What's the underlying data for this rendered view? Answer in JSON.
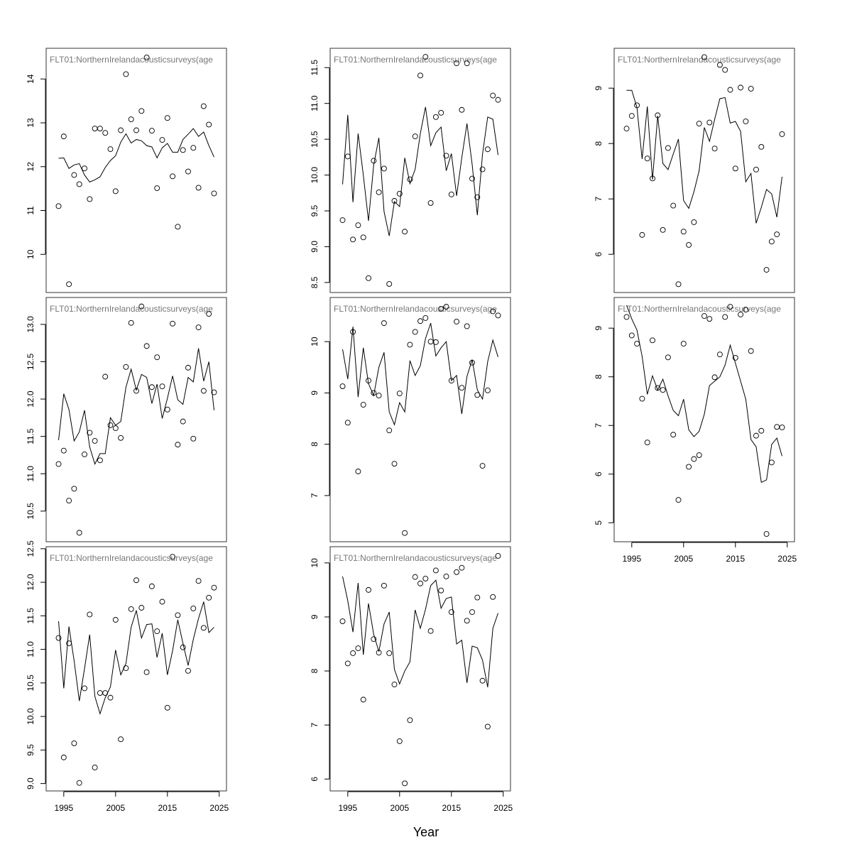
{
  "xlabel": "Year",
  "chart_data": [
    {
      "type": "scatter_line",
      "title": "FLT01:NorthernIrelandacousticsurveys(age",
      "x": [
        1994,
        1995,
        1996,
        1997,
        1998,
        1999,
        2000,
        2001,
        2002,
        2003,
        2004,
        2005,
        2006,
        2007,
        2008,
        2009,
        2010,
        2011,
        2012,
        2013,
        2014,
        2015,
        2016,
        2017,
        2018,
        2019,
        2020,
        2021,
        2022,
        2023,
        2024
      ],
      "series": [
        {
          "style": "points",
          "color": "#000000",
          "values": [
            11.1,
            12.69,
            9.32,
            11.81,
            11.6,
            11.96,
            11.26,
            12.87,
            12.87,
            12.77,
            12.4,
            11.44,
            12.83,
            14.11,
            13.08,
            12.83,
            13.27,
            14.49,
            12.82,
            11.51,
            12.61,
            13.11,
            11.78,
            10.63,
            12.38,
            11.89,
            12.43,
            11.52,
            13.38,
            12.96,
            11.39
          ]
        },
        {
          "style": "line",
          "color": "#000000",
          "values": [
            12.19,
            12.2,
            11.96,
            12.04,
            12.07,
            11.81,
            11.65,
            11.7,
            11.77,
            11.98,
            12.14,
            12.25,
            12.56,
            12.75,
            12.54,
            12.62,
            12.59,
            12.48,
            12.45,
            12.2,
            12.43,
            12.53,
            12.33,
            12.33,
            12.62,
            12.74,
            12.87,
            12.69,
            12.79,
            12.48,
            12.22
          ]
        }
      ],
      "xlim": [
        1991.6,
        2026.4
      ],
      "ylim": [
        9.13,
        14.7
      ],
      "yticks": [
        10,
        11,
        12,
        13,
        14
      ]
    },
    {
      "type": "scatter_line",
      "title": "FLT01:NorthernIrelandacousticsurveys(age",
      "x": [
        1994,
        1995,
        1996,
        1997,
        1998,
        1999,
        2000,
        2001,
        2002,
        2003,
        2004,
        2005,
        2006,
        2007,
        2008,
        2009,
        2010,
        2011,
        2012,
        2013,
        2014,
        2015,
        2016,
        2017,
        2018,
        2019,
        2020,
        2021,
        2022,
        2023,
        2024
      ],
      "series": [
        {
          "style": "points",
          "color": "#000000",
          "values": [
            11.13,
            11.31,
            10.64,
            10.8,
            10.21,
            11.26,
            11.55,
            11.44,
            11.18,
            12.3,
            11.65,
            11.61,
            11.48,
            12.43,
            13.02,
            12.11,
            13.24,
            12.71,
            12.16,
            12.56,
            12.17,
            11.86,
            13.01,
            11.39,
            11.7,
            12.42,
            11.47,
            12.96,
            12.11,
            13.14,
            12.09
          ]
        },
        {
          "style": "line",
          "color": "#000000",
          "values": [
            11.45,
            12.07,
            11.86,
            11.44,
            11.56,
            11.85,
            11.36,
            11.13,
            11.27,
            11.27,
            11.75,
            11.65,
            11.7,
            12.16,
            12.4,
            12.12,
            12.33,
            12.29,
            11.94,
            12.2,
            11.74,
            12.01,
            12.31,
            11.99,
            11.93,
            12.29,
            12.23,
            12.68,
            12.24,
            12.5,
            11.85
          ]
        }
      ],
      "xlim": [
        1991.6,
        2026.4
      ],
      "ylim": [
        10.09,
        13.36
      ],
      "yticks": [
        10.5,
        {
          "value": 11,
          "label": "11.0"
        },
        11.5,
        {
          "value": 12,
          "label": "12.0"
        },
        12.5,
        {
          "value": 13,
          "label": "13.0"
        }
      ]
    },
    {
      "type": "scatter_line",
      "title": "FLT01:NorthernIrelandacousticsurveys(age",
      "x": [
        1994,
        1995,
        1996,
        1997,
        1998,
        1999,
        2000,
        2001,
        2002,
        2003,
        2004,
        2005,
        2006,
        2007,
        2008,
        2009,
        2010,
        2011,
        2012,
        2013,
        2014,
        2015,
        2016,
        2017,
        2018,
        2019,
        2020,
        2021,
        2022,
        2023,
        2024
      ],
      "series": [
        {
          "style": "points",
          "color": "#000000",
          "values": [
            11.17,
            9.39,
            11.09,
            9.6,
            9.01,
            10.42,
            11.52,
            9.24,
            10.35,
            10.35,
            10.28,
            11.44,
            9.66,
            10.72,
            11.6,
            12.03,
            11.62,
            10.66,
            11.94,
            11.27,
            11.71,
            10.13,
            12.38,
            11.51,
            11.03,
            10.68,
            11.61,
            12.02,
            11.32,
            11.77,
            11.92
          ]
        },
        {
          "style": "line",
          "color": "#000000",
          "values": [
            11.42,
            10.42,
            11.34,
            10.83,
            10.23,
            10.71,
            11.22,
            10.3,
            10.04,
            10.28,
            10.44,
            10.99,
            10.62,
            10.79,
            11.33,
            11.58,
            11.17,
            11.37,
            11.38,
            10.88,
            11.24,
            10.62,
            10.98,
            11.44,
            11.09,
            10.76,
            11.15,
            11.46,
            11.71,
            11.25,
            11.33
          ]
        }
      ],
      "xlim": [
        1991.6,
        2026.4
      ],
      "ylim": [
        8.89,
        12.53
      ],
      "yticks": [
        {
          "value": 9,
          "label": "9.0"
        },
        9.5,
        {
          "value": 10,
          "label": "10.0"
        },
        10.5,
        {
          "value": 11,
          "label": "11.0"
        },
        11.5,
        {
          "value": 12,
          "label": "12.0"
        },
        12.5
      ],
      "xticks": [
        1995,
        2005,
        2015,
        2025
      ]
    },
    {
      "type": "scatter_line",
      "title": "FLT01:NorthernIrelandacousticsurveys(age",
      "x": [
        1994,
        1995,
        1996,
        1997,
        1998,
        1999,
        2000,
        2001,
        2002,
        2003,
        2004,
        2005,
        2006,
        2007,
        2008,
        2009,
        2010,
        2011,
        2012,
        2013,
        2014,
        2015,
        2016,
        2017,
        2018,
        2019,
        2020,
        2021,
        2022,
        2023,
        2024
      ],
      "series": [
        {
          "style": "points",
          "color": "#000000",
          "values": [
            9.37,
            10.26,
            9.1,
            9.3,
            9.13,
            8.56,
            10.2,
            9.76,
            10.09,
            8.48,
            9.64,
            9.74,
            9.21,
            9.94,
            10.54,
            11.39,
            11.65,
            9.61,
            10.81,
            10.87,
            10.27,
            9.73,
            11.56,
            10.91,
            11.56,
            9.95,
            9.69,
            10.08,
            10.36,
            11.11,
            11.05
          ]
        },
        {
          "style": "line",
          "color": "#000000",
          "values": [
            9.87,
            10.84,
            9.62,
            10.58,
            10.0,
            9.36,
            10.14,
            10.52,
            9.49,
            9.15,
            9.63,
            9.56,
            10.24,
            9.88,
            10.08,
            10.58,
            10.95,
            10.41,
            10.59,
            10.67,
            10.06,
            10.3,
            9.71,
            10.24,
            10.72,
            10.15,
            9.44,
            10.29,
            10.81,
            10.78,
            10.28
          ]
        }
      ],
      "xlim": [
        1991.6,
        2026.4
      ],
      "ylim": [
        8.36,
        11.77
      ],
      "yticks": [
        8.5,
        {
          "value": 9,
          "label": "9.0"
        },
        9.5,
        {
          "value": 10,
          "label": "10.0"
        },
        10.5,
        {
          "value": 11,
          "label": "11.0"
        },
        11.5
      ]
    },
    {
      "type": "scatter_line",
      "title": "FLT01:NorthernIrelandacousticsurveys(age",
      "x": [
        1994,
        1995,
        1996,
        1997,
        1998,
        1999,
        2000,
        2001,
        2002,
        2003,
        2004,
        2005,
        2006,
        2007,
        2008,
        2009,
        2010,
        2011,
        2012,
        2013,
        2014,
        2015,
        2016,
        2017,
        2018,
        2019,
        2020,
        2021,
        2022,
        2023,
        2024
      ],
      "series": [
        {
          "style": "points",
          "color": "#000000",
          "values": [
            9.13,
            8.42,
            10.19,
            7.47,
            8.77,
            9.24,
            9.0,
            8.95,
            10.36,
            8.27,
            7.62,
            8.99,
            6.27,
            9.94,
            10.19,
            10.4,
            10.46,
            10.0,
            9.99,
            10.64,
            10.68,
            9.24,
            10.39,
            9.1,
            10.3,
            9.59,
            8.96,
            7.58,
            9.05,
            10.59,
            10.51
          ]
        },
        {
          "style": "line",
          "color": "#000000",
          "values": [
            9.85,
            9.27,
            10.29,
            8.92,
            9.88,
            9.18,
            8.95,
            9.5,
            9.79,
            8.63,
            8.38,
            8.81,
            8.63,
            9.63,
            9.34,
            9.53,
            10.06,
            10.36,
            9.72,
            9.88,
            10.0,
            9.24,
            9.34,
            8.59,
            9.32,
            9.65,
            9.06,
            8.88,
            9.61,
            10.03,
            9.7
          ]
        }
      ],
      "xlim": [
        1991.6,
        2026.4
      ],
      "ylim": [
        6.1,
        10.86
      ],
      "yticks": [
        7,
        8,
        9,
        10
      ]
    },
    {
      "type": "scatter_line",
      "title": "FLT01:NorthernIrelandacousticsurveys(age",
      "x": [
        1994,
        1995,
        1996,
        1997,
        1998,
        1999,
        2000,
        2001,
        2002,
        2003,
        2004,
        2005,
        2006,
        2007,
        2008,
        2009,
        2010,
        2011,
        2012,
        2013,
        2014,
        2015,
        2016,
        2017,
        2018,
        2019,
        2020,
        2021,
        2022,
        2023,
        2024
      ],
      "series": [
        {
          "style": "points",
          "color": "#000000",
          "values": [
            8.92,
            8.14,
            8.33,
            8.42,
            7.47,
            9.5,
            8.59,
            8.34,
            9.58,
            8.33,
            7.75,
            6.7,
            5.92,
            7.09,
            9.74,
            9.62,
            9.71,
            8.74,
            9.86,
            9.49,
            9.75,
            9.09,
            9.83,
            9.91,
            8.93,
            9.09,
            9.36,
            7.82,
            6.97,
            9.37,
            10.13
          ]
        },
        {
          "style": "line",
          "color": "#000000",
          "values": [
            9.75,
            9.3,
            8.72,
            9.63,
            8.3,
            9.25,
            8.68,
            8.36,
            8.87,
            9.09,
            8.03,
            7.76,
            8.0,
            8.17,
            9.13,
            8.79,
            9.14,
            9.58,
            9.68,
            9.16,
            9.34,
            9.37,
            8.5,
            8.57,
            7.78,
            8.46,
            8.43,
            8.2,
            7.7,
            8.79,
            9.07
          ]
        }
      ],
      "xlim": [
        1991.6,
        2026.4
      ],
      "ylim": [
        5.78,
        10.3
      ],
      "yticks": [
        6,
        7,
        8,
        9,
        10
      ],
      "xticks": [
        1995,
        2005,
        2015,
        2025
      ]
    },
    {
      "type": "scatter_line",
      "title": "FLT01:NorthernIrelandacousticsurveys(age",
      "x": [
        1994,
        1995,
        1996,
        1997,
        1998,
        1999,
        2000,
        2001,
        2002,
        2003,
        2004,
        2005,
        2006,
        2007,
        2008,
        2009,
        2010,
        2011,
        2012,
        2013,
        2014,
        2015,
        2016,
        2017,
        2018,
        2019,
        2020,
        2021,
        2022,
        2023,
        2024
      ],
      "series": [
        {
          "style": "points",
          "color": "#000000",
          "values": [
            8.27,
            8.5,
            8.69,
            6.35,
            7.73,
            7.37,
            8.51,
            6.44,
            7.92,
            6.88,
            5.46,
            6.41,
            6.17,
            6.58,
            8.36,
            9.56,
            8.38,
            7.91,
            9.42,
            9.33,
            8.97,
            7.55,
            9.01,
            8.4,
            8.99,
            7.53,
            7.94,
            5.72,
            6.23,
            6.36,
            8.17
          ]
        },
        {
          "style": "line",
          "color": "#000000",
          "values": [
            8.96,
            8.96,
            8.65,
            7.72,
            8.67,
            7.35,
            8.5,
            7.64,
            7.53,
            7.81,
            8.08,
            6.97,
            6.83,
            7.13,
            7.51,
            8.29,
            8.04,
            8.44,
            8.81,
            8.83,
            8.37,
            8.4,
            8.22,
            7.31,
            7.46,
            6.56,
            6.85,
            7.17,
            7.09,
            6.67,
            7.4
          ]
        }
      ],
      "xlim": [
        1991.6,
        2026.4
      ],
      "ylim": [
        5.31,
        9.72
      ],
      "yticks": [
        6,
        7,
        8,
        9
      ]
    },
    {
      "type": "scatter_line",
      "title": "FLT01:NorthernIrelandacousticsurveys(age",
      "x": [
        1994,
        1995,
        1996,
        1997,
        1998,
        1999,
        2000,
        2001,
        2002,
        2003,
        2004,
        2005,
        2006,
        2007,
        2008,
        2009,
        2010,
        2011,
        2012,
        2013,
        2014,
        2015,
        2016,
        2017,
        2018,
        2019,
        2020,
        2021,
        2022,
        2023,
        2024
      ],
      "series": [
        {
          "style": "points",
          "color": "#000000",
          "values": [
            9.23,
            8.85,
            8.68,
            7.55,
            6.65,
            8.75,
            7.77,
            7.73,
            8.4,
            6.81,
            5.47,
            8.68,
            6.15,
            6.31,
            6.39,
            9.25,
            9.19,
            7.99,
            8.46,
            9.23,
            9.44,
            8.39,
            9.28,
            9.38,
            8.53,
            6.79,
            6.89,
            4.77,
            6.24,
            6.97,
            6.96
          ]
        },
        {
          "style": "line",
          "color": "#000000",
          "values": [
            9.47,
            9.19,
            8.96,
            8.42,
            7.64,
            8.02,
            7.73,
            7.95,
            7.61,
            7.31,
            7.2,
            7.54,
            6.91,
            6.77,
            6.88,
            7.23,
            7.82,
            7.91,
            8.0,
            8.24,
            8.65,
            8.28,
            7.91,
            7.54,
            6.71,
            6.56,
            5.83,
            5.88,
            6.61,
            6.74,
            6.37
          ]
        }
      ],
      "xlim": [
        1991.6,
        2026.4
      ],
      "ylim": [
        4.61,
        9.63
      ],
      "yticks": [
        5,
        6,
        7,
        8,
        9
      ],
      "xticks": [
        1995,
        2005,
        2015,
        2025
      ]
    }
  ]
}
